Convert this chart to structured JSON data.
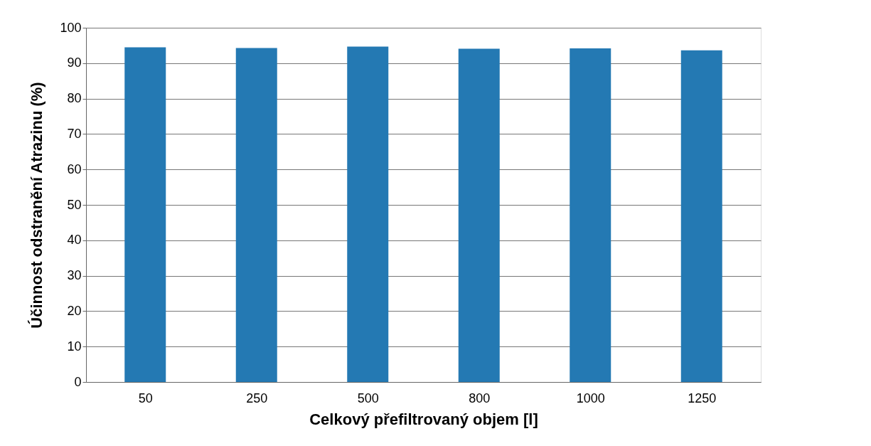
{
  "chart_data": {
    "type": "bar",
    "xlabel": "Celkový přefiltrovaný objem [l]",
    "ylabel": "Účinnost odstranění Atrazinu (%)",
    "categories": [
      "50",
      "250",
      "500",
      "800",
      "1000",
      "1250"
    ],
    "series": [
      {
        "color": "#2479b3",
        "values": [
          94.5,
          94.3,
          94.7,
          94.1,
          94.2,
          93.6
        ]
      }
    ],
    "ylim": [
      0,
      100
    ],
    "yticks": [
      0,
      10,
      20,
      30,
      40,
      50,
      60,
      70,
      80,
      90,
      100
    ],
    "grid": "y"
  }
}
